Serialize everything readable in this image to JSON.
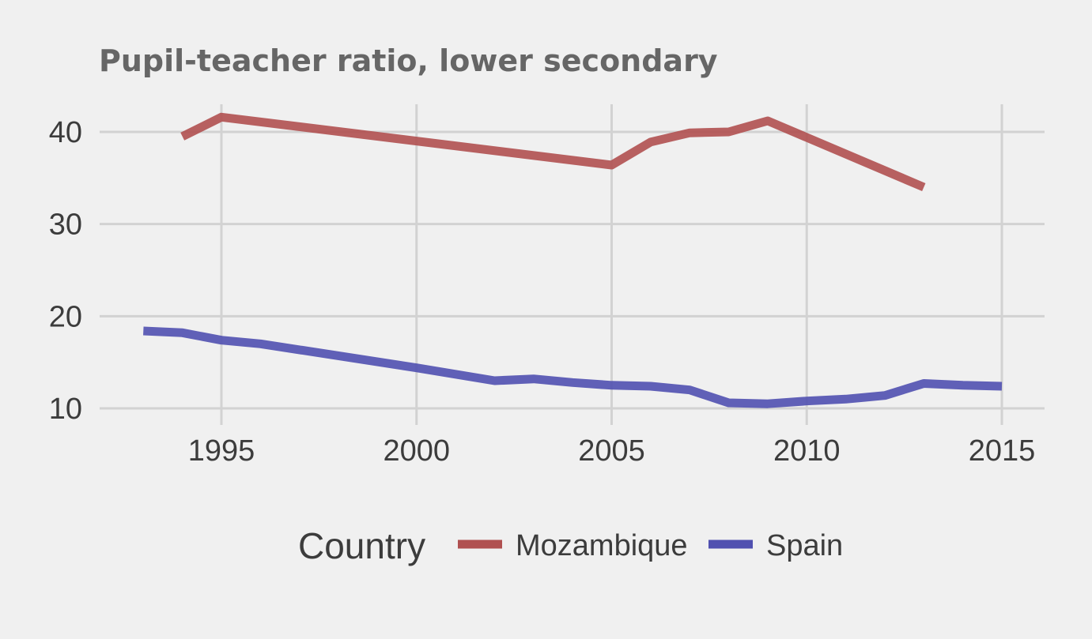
{
  "chart_data": {
    "type": "line",
    "title": "Pupil-teacher ratio, lower secondary",
    "xlabel": "",
    "ylabel": "",
    "xlim": [
      1993,
      2015
    ],
    "ylim": [
      10,
      43
    ],
    "x_ticks": [
      1995,
      2000,
      2005,
      2010,
      2015
    ],
    "y_ticks": [
      10,
      20,
      30,
      40
    ],
    "grid": true,
    "legend": {
      "title": "Country",
      "position": "bottom"
    },
    "series": [
      {
        "name": "Mozambique",
        "color": "#b05050",
        "x": [
          1994,
          1995,
          2005,
          2006,
          2007,
          2008,
          2009,
          2013
        ],
        "y": [
          39.5,
          41.6,
          36.4,
          38.9,
          39.9,
          40.0,
          41.2,
          34.0
        ]
      },
      {
        "name": "Spain",
        "color": "#5050b0",
        "x": [
          1993,
          1994,
          1995,
          1996,
          2000,
          2002,
          2003,
          2004,
          2005,
          2006,
          2007,
          2008,
          2009,
          2010,
          2011,
          2012,
          2013,
          2014,
          2015
        ],
        "y": [
          18.4,
          18.2,
          17.4,
          17.0,
          14.4,
          13.0,
          13.2,
          12.8,
          12.5,
          12.4,
          12.0,
          10.6,
          10.5,
          10.8,
          11.0,
          11.4,
          12.7,
          12.5,
          12.4
        ]
      }
    ]
  }
}
